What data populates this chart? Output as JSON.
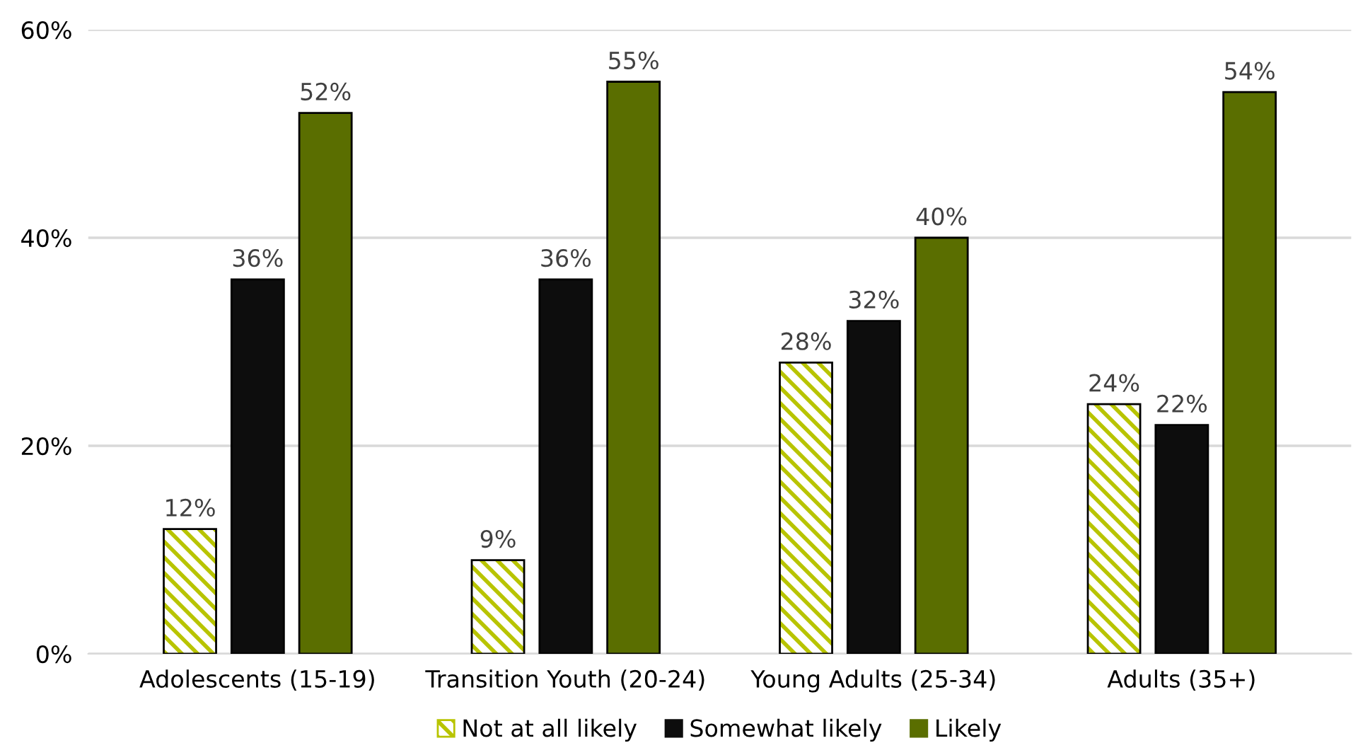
{
  "chart_data": {
    "type": "bar",
    "categories": [
      "Adolescents (15-19)",
      "Transition Youth (20-24)",
      "Young Adults (25-34)",
      "Adults (35+)"
    ],
    "series": [
      {
        "name": "Not at all likely",
        "color": "#b8c400",
        "values": [
          12,
          9,
          28,
          24
        ],
        "value_labels": [
          "12%",
          "9%",
          "28%",
          "24%"
        ]
      },
      {
        "name": "Somewhat likely",
        "color": "#0d0d0d",
        "values": [
          36,
          36,
          32,
          22
        ],
        "value_labels": [
          "36%",
          "36%",
          "32%",
          "22%"
        ]
      },
      {
        "name": "Likely",
        "color": "#5a6e00",
        "values": [
          52,
          55,
          40,
          54
        ],
        "value_labels": [
          "52%",
          "55%",
          "40%",
          "54%"
        ]
      }
    ],
    "ylim": [
      0,
      60
    ],
    "yticks": [
      {
        "value": 0,
        "label": "0%"
      },
      {
        "value": 20,
        "label": "20%"
      },
      {
        "value": 40,
        "label": "40%"
      },
      {
        "value": 60,
        "label": "60%"
      }
    ],
    "grid": "y",
    "legend": "bottom"
  }
}
